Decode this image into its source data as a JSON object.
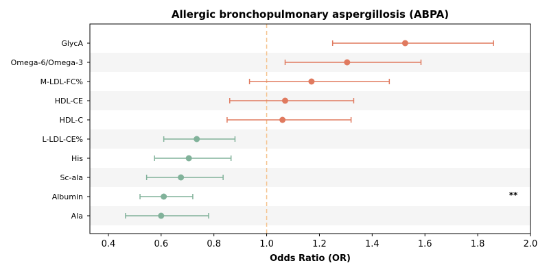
{
  "chart_data": {
    "type": "forest",
    "title": "Allergic bronchopulmonary aspergillosis (ABPA)",
    "xlabel": "Odds Ratio (OR)",
    "xlim": [
      0.33,
      2.0
    ],
    "xticks": [
      0.4,
      0.6,
      0.8,
      1.0,
      1.2,
      1.4,
      1.6,
      1.8,
      2.0
    ],
    "xtick_labels": [
      "0.4",
      "0.6",
      "0.8",
      "1.0",
      "1.2",
      "1.4",
      "1.6",
      "1.8",
      "2.0"
    ],
    "reference_line": 1.0,
    "reference_color": "#f5c28e",
    "colors": {
      "risk": "#e07a5f",
      "protective": "#81b29a",
      "band": "#f5f5f5"
    },
    "rows": [
      {
        "label": "GlycA",
        "or": 1.525,
        "lo": 1.25,
        "hi": 1.86,
        "group": "risk"
      },
      {
        "label": "Omega-6/Omega-3",
        "or": 1.305,
        "lo": 1.07,
        "hi": 1.585,
        "group": "risk"
      },
      {
        "label": "M-LDL-FC%",
        "or": 1.17,
        "lo": 0.935,
        "hi": 1.465,
        "group": "risk"
      },
      {
        "label": "HDL-CE",
        "or": 1.07,
        "lo": 0.86,
        "hi": 1.33,
        "group": "risk"
      },
      {
        "label": "HDL-C",
        "or": 1.06,
        "lo": 0.85,
        "hi": 1.32,
        "group": "risk"
      },
      {
        "label": "L-LDL-CE%",
        "or": 0.735,
        "lo": 0.61,
        "hi": 0.88,
        "group": "protective"
      },
      {
        "label": "His",
        "or": 0.705,
        "lo": 0.575,
        "hi": 0.865,
        "group": "protective"
      },
      {
        "label": "Sc-ala",
        "or": 0.675,
        "lo": 0.545,
        "hi": 0.835,
        "group": "protective"
      },
      {
        "label": "Albumin",
        "or": 0.61,
        "lo": 0.52,
        "hi": 0.72,
        "group": "protective",
        "annotation": "**"
      },
      {
        "label": "Ala",
        "or": 0.6,
        "lo": 0.465,
        "hi": 0.78,
        "group": "protective"
      }
    ]
  }
}
